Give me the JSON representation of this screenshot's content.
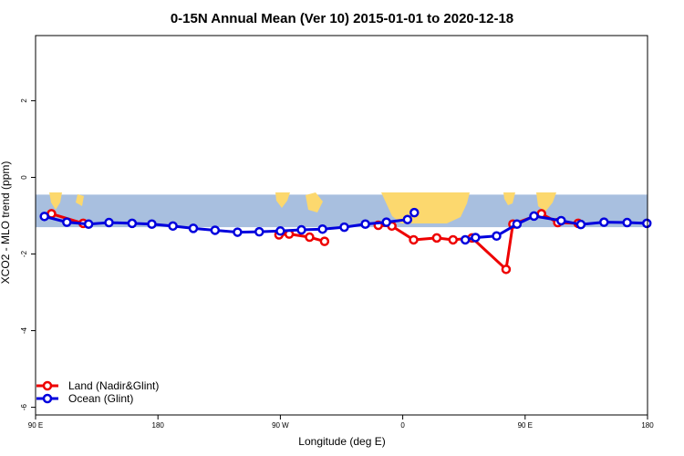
{
  "colors": {
    "land": "#ee0000",
    "ocean": "#0000dd",
    "band": "#a8bfdf",
    "continent": "#fcd86e"
  },
  "chart_data": {
    "type": "line",
    "title": "0-15N Annual Mean (Ver 10)   2015-01-01 to 2020-12-18",
    "xlabel": "Longitude (deg E)",
    "ylabel": "XCO2 - MLO trend (ppm)",
    "xlim": [
      90,
      540
    ],
    "ylim": [
      -6.2,
      3.7
    ],
    "x_ticks": [
      {
        "value": 90,
        "label": "90 E"
      },
      {
        "value": 180,
        "label": "180"
      },
      {
        "value": 270,
        "label": "90 W"
      },
      {
        "value": 360,
        "label": "0"
      },
      {
        "value": 450,
        "label": "90 E"
      },
      {
        "value": 540,
        "label": "180"
      }
    ],
    "y_ticks": [
      {
        "value": 2,
        "label": "2"
      },
      {
        "value": 0,
        "label": "0"
      },
      {
        "value": -2,
        "label": "-2"
      },
      {
        "value": -4,
        "label": "-4"
      },
      {
        "value": -6,
        "label": "-6"
      }
    ],
    "map_band": {
      "y_top": -0.45,
      "y_bottom": -1.3
    },
    "legend": {
      "position": "bottom-left"
    },
    "series": [
      {
        "name": "Land (Nadir&Glint)",
        "color": "#ee0000",
        "segments": [
          [
            [
              101.7,
              -0.95
            ],
            [
              125.0,
              -1.2
            ]
          ],
          [
            [
              269.0,
              -1.5
            ],
            [
              276.5,
              -1.48
            ],
            [
              291.5,
              -1.56
            ],
            [
              302.5,
              -1.67
            ]
          ],
          [
            [
              342.0,
              -1.25
            ],
            [
              352.0,
              -1.27
            ],
            [
              368.0,
              -1.63
            ],
            [
              385.0,
              -1.58
            ],
            [
              397.0,
              -1.63
            ],
            [
              411.0,
              -1.58
            ],
            [
              436.0,
              -2.4
            ],
            [
              441.0,
              -1.22
            ],
            [
              462.0,
              -0.95
            ],
            [
              474.0,
              -1.18
            ],
            [
              489.0,
              -1.2
            ]
          ]
        ]
      },
      {
        "name": "Ocean (Glint)",
        "color": "#0000dd",
        "segments": [
          [
            [
              96.5,
              -1.02
            ],
            [
              113.0,
              -1.17
            ],
            [
              129.0,
              -1.22
            ],
            [
              144.0,
              -1.18
            ],
            [
              161.0,
              -1.2
            ],
            [
              175.5,
              -1.22
            ],
            [
              191.0,
              -1.27
            ],
            [
              206.0,
              -1.33
            ],
            [
              222.0,
              -1.38
            ],
            [
              238.5,
              -1.43
            ],
            [
              254.5,
              -1.42
            ],
            [
              270.0,
              -1.4
            ],
            [
              285.5,
              -1.37
            ],
            [
              301.0,
              -1.35
            ],
            [
              317.0,
              -1.3
            ],
            [
              332.5,
              -1.22
            ],
            [
              348.0,
              -1.17
            ],
            [
              363.5,
              -1.1
            ]
          ],
          [
            [
              368.5,
              -0.92
            ]
          ],
          [
            [
              406.0,
              -1.63
            ],
            [
              413.5,
              -1.57
            ],
            [
              429.0,
              -1.53
            ],
            [
              444.0,
              -1.22
            ],
            [
              456.5,
              -1.01
            ],
            [
              476.5,
              -1.13
            ],
            [
              491.0,
              -1.23
            ],
            [
              508.0,
              -1.17
            ],
            [
              525.0,
              -1.18
            ],
            [
              539.5,
              -1.2
            ]
          ]
        ]
      }
    ]
  }
}
